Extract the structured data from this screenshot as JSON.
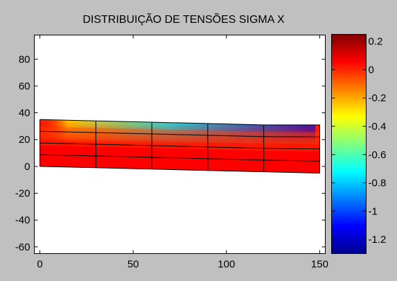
{
  "chart_data": [
    {
      "type": "heatmap",
      "title": "DISTRIBUIÇÃO DE TENSÕES SIGMA X",
      "xlabel": "",
      "ylabel": "",
      "xlim": [
        -3,
        153
      ],
      "ylim": [
        -65,
        98
      ],
      "x_ticks": [
        "0",
        "50",
        "100",
        "150"
      ],
      "x_tick_values": [
        0,
        50,
        100,
        150
      ],
      "y_ticks": [
        "80",
        "60",
        "40",
        "20",
        "0",
        "-20",
        "-40",
        "-60"
      ],
      "y_tick_values": [
        80,
        60,
        40,
        20,
        0,
        -20,
        -40,
        -60
      ],
      "grid": false,
      "mesh_columns_x": [
        0,
        30,
        60,
        90,
        120,
        150
      ],
      "mesh_bottom_y": [
        0,
        -1,
        -2,
        -3,
        -4,
        -5
      ],
      "mesh_top_y": [
        35,
        34,
        33,
        32,
        31,
        31
      ],
      "mesh_row_fractions": [
        0,
        0.25,
        0.5,
        0.75,
        1
      ],
      "stress_description": "sigma x values near 0 over most of the beam, strongly negative near the top-right corner"
    },
    {
      "type": "colorbar",
      "clim": [
        -1.3,
        0.25
      ],
      "ticks": [
        "0.2",
        "0",
        "-0.2",
        "-0.4",
        "-0.6",
        "-0.8",
        "-1",
        "-1.2"
      ],
      "tick_values": [
        0.2,
        0,
        -0.2,
        -0.4,
        -0.6,
        -0.8,
        -1,
        -1.2
      ],
      "colormap": "jet"
    }
  ]
}
